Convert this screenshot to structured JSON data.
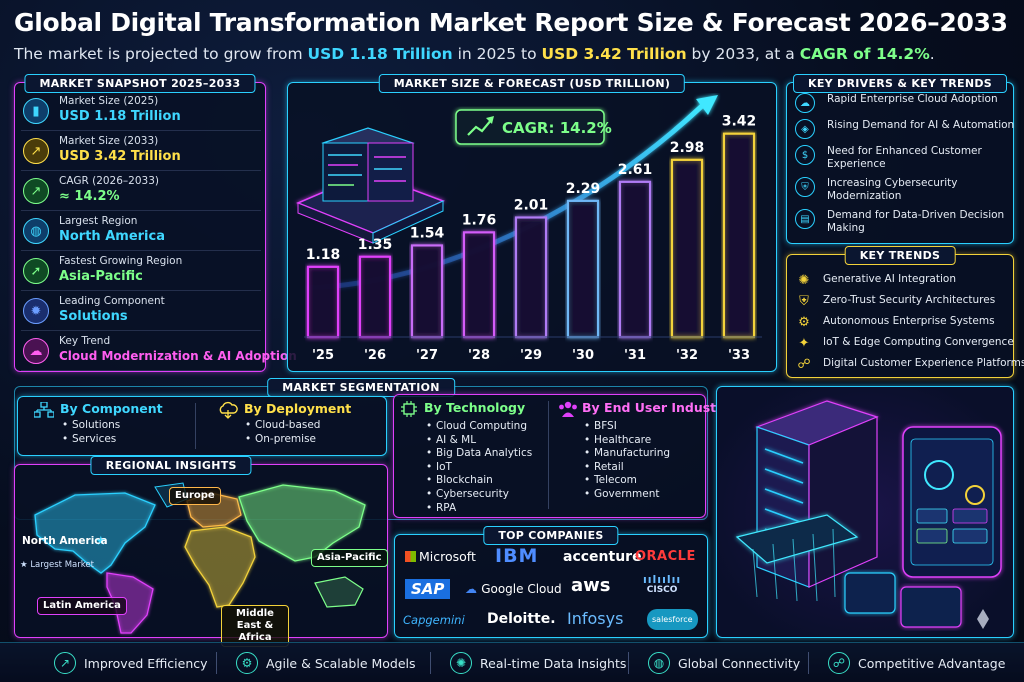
{
  "header": {
    "title": "Global Digital Transformation Market Report Size & Forecast 2026–2033",
    "sub_1": "The market is projected to grow from ",
    "sub_2": "USD 1.18 Trillion",
    "sub_3": " in 2025 to ",
    "sub_4": "USD 3.42 Trillion",
    "sub_5": " by 2033, at a ",
    "sub_6": "CAGR of 14.2%",
    "sub_7": "."
  },
  "snapshot": {
    "title": "MARKET SNAPSHOT 2025–2033",
    "rows": [
      {
        "label": "Market Size (2025)",
        "value": "USD 1.18 Trillion",
        "color": "#3fd7ff"
      },
      {
        "label": "Market Size (2033)",
        "value": "USD 3.42 Trillion",
        "color": "#ffe04a"
      },
      {
        "label": "CAGR (2026–2033)",
        "value": "≈ 14.2%",
        "color": "#7dff8a"
      },
      {
        "label": "Largest Region",
        "value": "North America",
        "color": "#3fd7ff"
      },
      {
        "label": "Fastest Growing Region",
        "value": "Asia-Pacific",
        "color": "#7dff8a"
      },
      {
        "label": "Leading Component",
        "value": "Solutions",
        "color": "#3fd7ff"
      },
      {
        "label": "Key Trend",
        "value": "Cloud Modernization & AI Adoption",
        "color": "#ff5ef0"
      }
    ]
  },
  "forecast": {
    "title": "MARKET SIZE & FORECAST (USD TRILLION)",
    "cagr_label": "CAGR: 14.2%"
  },
  "chart_data": {
    "type": "bar",
    "title": "MARKET SIZE & FORECAST (USD TRILLION)",
    "categories": [
      "'25",
      "'26",
      "'27",
      "'28",
      "'29",
      "'30",
      "'31",
      "'32",
      "'33"
    ],
    "values": [
      1.18,
      1.35,
      1.54,
      1.76,
      2.01,
      2.29,
      2.61,
      2.98,
      3.42
    ],
    "value_labels": [
      "1.18",
      "1.35",
      "1.54",
      "1.76",
      "2.01",
      "2.29",
      "2.61",
      "2.98",
      "3.42"
    ],
    "ylim": [
      0,
      3.6
    ],
    "grid": false,
    "colors": [
      "#e040fb",
      "#e040fb",
      "#c86cf7",
      "#d35cf9",
      "#b07cf5",
      "#6fb8f7",
      "#b07cf5",
      "#f3d23a",
      "#f3d23a"
    ]
  },
  "drivers": {
    "title": "KEY DRIVERS & KEY TRENDS",
    "items": [
      "Rapid Enterprise Cloud Adoption",
      "Rising Demand for AI & Automation",
      "Need for Enhanced Customer Experience",
      "Increasing Cybersecurity Modernization",
      "Demand for Data-Driven Decision Making"
    ]
  },
  "trends": {
    "title": "KEY TRENDS",
    "items": [
      "Generative AI Integration",
      "Zero-Trust Security Architectures",
      "Autonomous Enterprise Systems",
      "IoT & Edge Computing Convergence",
      "Digital Customer Experience Platforms"
    ]
  },
  "segmentation": {
    "title": "MARKET SEGMENTATION",
    "component": {
      "heading": "By Component",
      "items": [
        "Solutions",
        "Services"
      ]
    },
    "deployment": {
      "heading": "By Deployment",
      "items": [
        "Cloud-based",
        "On-premise"
      ]
    },
    "technology": {
      "heading": "By Technology",
      "items": [
        "Cloud Computing",
        "AI & ML",
        "Big Data Analytics",
        "IoT",
        "Blockchain",
        "Cybersecurity",
        "RPA"
      ]
    },
    "industry": {
      "heading": "By End User Industry",
      "items": [
        "BFSI",
        "Healthcare",
        "Manufacturing",
        "Retail",
        "Telecom",
        "Government"
      ]
    }
  },
  "regional": {
    "title": "REGIONAL INSIGHTS",
    "north_america": "North America",
    "largest": "★ Largest Market",
    "europe": "Europe",
    "asia": "Asia-Pacific",
    "latin": "Latin America",
    "mea": "Middle East & Africa"
  },
  "companies": {
    "title": "TOP COMPANIES",
    "names": [
      "Microsoft",
      "IBM",
      "accenture",
      "ORACLE",
      "SAP",
      "Google Cloud",
      "aws",
      "CISCO",
      "Capgemini",
      "Deloitte.",
      "Infosys",
      "salesforce"
    ]
  },
  "footer": {
    "items": [
      "Improved Efficiency",
      "Agile & Scalable Models",
      "Real-time Data Insights",
      "Global Connectivity",
      "Competitive Advantage"
    ]
  }
}
